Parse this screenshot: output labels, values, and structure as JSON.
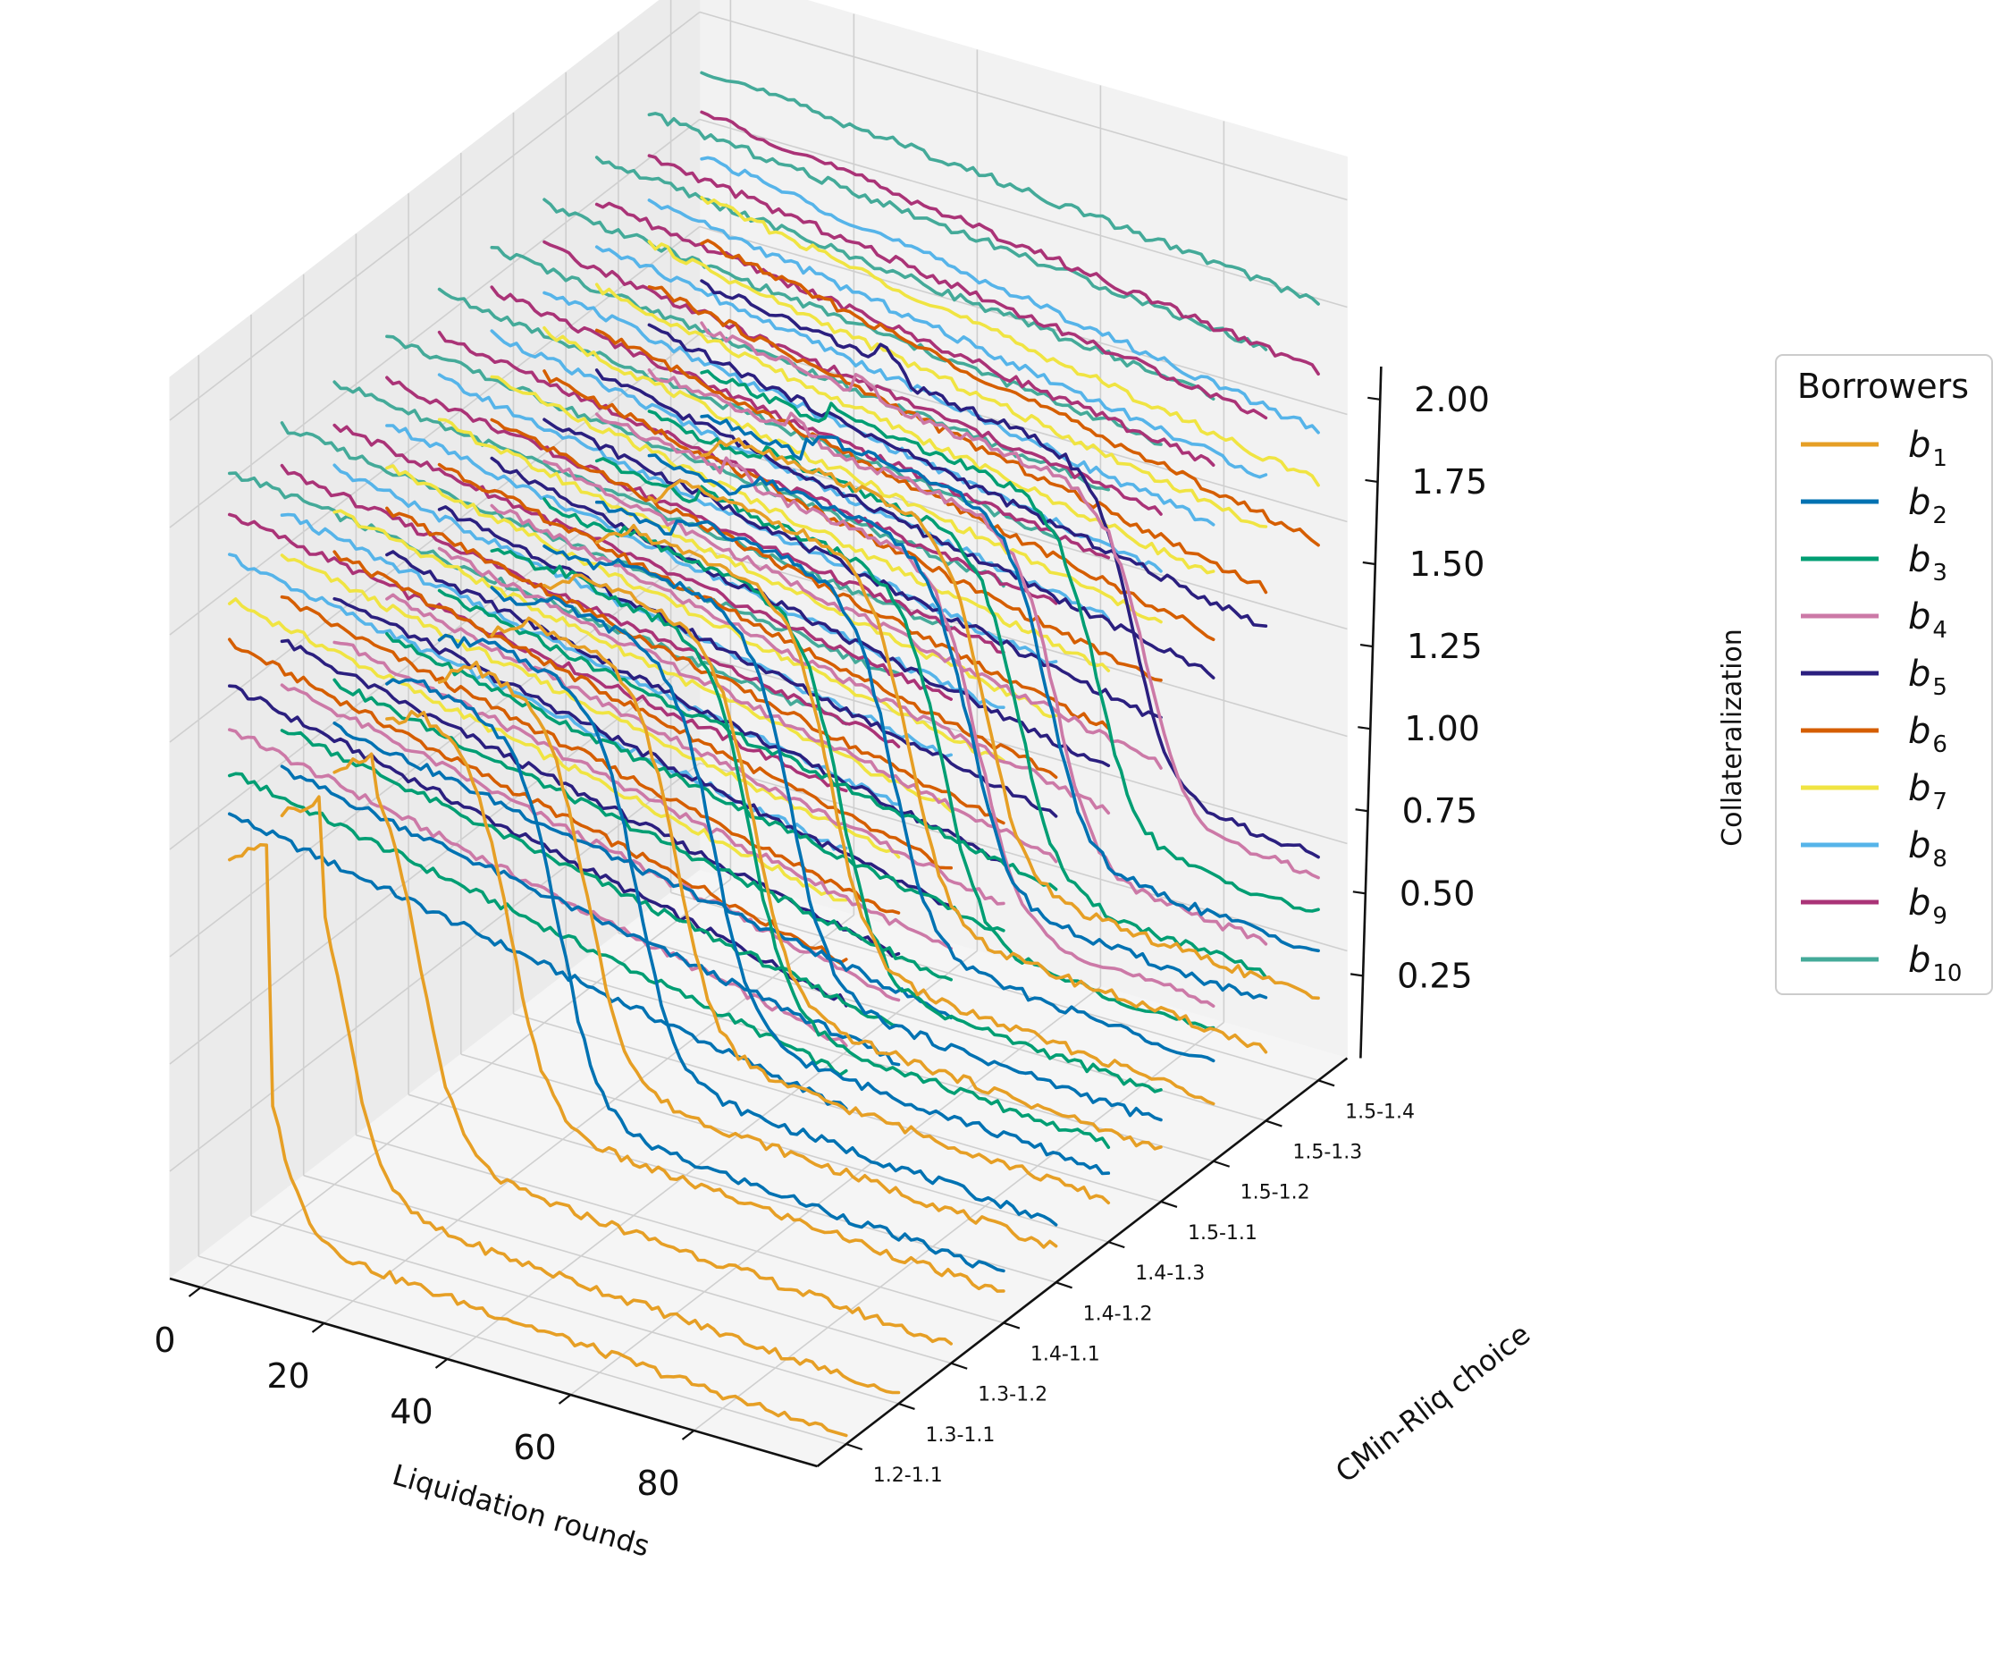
{
  "chart_data": {
    "type": "line",
    "subtype": "3d-waterfall",
    "title": "",
    "xlabel": "Liquidation rounds",
    "ylabel": "CMin-Rliq choice",
    "zlabel": "Collateralization",
    "x_ticks": [
      "0",
      "20",
      "40",
      "60",
      "80"
    ],
    "y_ticks": [
      "1.2-1.1",
      "1.3-1.1",
      "1.3-1.2",
      "1.4-1.1",
      "1.4-1.2",
      "1.4-1.3",
      "1.5-1.1",
      "1.5-1.2",
      "1.5-1.3",
      "1.5-1.4"
    ],
    "z_ticks": [
      "0.25",
      "0.50",
      "0.75",
      "1.00",
      "1.25",
      "1.50",
      "1.75",
      "2.00"
    ],
    "xlim": [
      -5,
      100
    ],
    "zlim": [
      0.0,
      2.1
    ],
    "grid": true,
    "legend": {
      "title": "Borrowers",
      "position": "right",
      "entries": [
        {
          "base": "b",
          "sub": "1",
          "color": "#E69F25"
        },
        {
          "base": "b",
          "sub": "2",
          "color": "#0072B2"
        },
        {
          "base": "b",
          "sub": "3",
          "color": "#009E73"
        },
        {
          "base": "b",
          "sub": "4",
          "color": "#CC79A7"
        },
        {
          "base": "b",
          "sub": "5",
          "color": "#2B1F7F"
        },
        {
          "base": "b",
          "sub": "6",
          "color": "#D55E00"
        },
        {
          "base": "b",
          "sub": "7",
          "color": "#F0E442"
        },
        {
          "base": "b",
          "sub": "8",
          "color": "#56B4E9"
        },
        {
          "base": "b",
          "sub": "9",
          "color": "#AA3377"
        },
        {
          "base": "b",
          "sub": "10",
          "color": "#44AA99"
        }
      ]
    },
    "initial_collateralization": [
      0.95,
      1.05,
      1.15,
      1.25,
      1.35,
      1.45,
      1.55,
      1.65,
      1.75,
      1.85
    ],
    "end_collateralization": [
      0.72,
      0.78,
      0.86,
      0.93,
      1.03,
      1.12,
      1.26,
      1.38,
      1.52,
      1.68
    ],
    "liquidated": [
      {
        "choice": "1.2-1.1",
        "borrower": "b1",
        "start": 0,
        "liquidation_round": 5,
        "end_value": 0.1
      },
      {
        "choice": "1.3-1.1",
        "borrower": "b1",
        "start": 0,
        "liquidation_round": 10,
        "end_value": 0.1
      },
      {
        "choice": "1.3-1.2",
        "borrower": "b1",
        "start": 0,
        "liquidation_round": 14,
        "end_value": 0.12
      },
      {
        "choice": "1.4-1.1",
        "borrower": "b1",
        "start": 0,
        "liquidation_round": 20,
        "end_value": 0.14
      },
      {
        "choice": "1.4-1.1",
        "borrower": "b2",
        "start": 0,
        "liquidation_round": 28,
        "end_value": 0.18
      },
      {
        "choice": "1.4-1.2",
        "borrower": "b1",
        "start": 0,
        "liquidation_round": 24,
        "end_value": 0.15
      },
      {
        "choice": "1.4-1.2",
        "borrower": "b2",
        "start": 3,
        "liquidation_round": 32,
        "end_value": 0.2
      },
      {
        "choice": "1.4-1.3",
        "borrower": "b1",
        "start": 0,
        "liquidation_round": 30,
        "end_value": 0.16
      },
      {
        "choice": "1.4-1.3",
        "borrower": "b2",
        "start": 5,
        "liquidation_round": 36,
        "end_value": 0.22
      },
      {
        "choice": "1.4-1.3",
        "borrower": "b3",
        "start": 10,
        "liquidation_round": 42,
        "end_value": 0.28
      },
      {
        "choice": "1.5-1.1",
        "borrower": "b1",
        "start": 0,
        "liquidation_round": 34,
        "end_value": 0.18
      },
      {
        "choice": "1.5-1.1",
        "borrower": "b2",
        "start": 8,
        "liquidation_round": 40,
        "end_value": 0.24
      },
      {
        "choice": "1.5-1.1",
        "borrower": "b3",
        "start": 12,
        "liquidation_round": 48,
        "end_value": 0.3
      },
      {
        "choice": "1.5-1.2",
        "borrower": "b1",
        "start": 0,
        "liquidation_round": 38,
        "end_value": 0.2
      },
      {
        "choice": "1.5-1.2",
        "borrower": "b2",
        "start": 12,
        "liquidation_round": 48,
        "end_value": 0.28
      },
      {
        "choice": "1.5-1.2",
        "borrower": "b3",
        "start": 16,
        "liquidation_round": 56,
        "end_value": 0.34
      },
      {
        "choice": "1.5-1.2",
        "borrower": "b4",
        "start": 20,
        "liquidation_round": 62,
        "end_value": 0.4
      },
      {
        "choice": "1.5-1.3",
        "borrower": "b1",
        "start": 0,
        "liquidation_round": 42,
        "end_value": 0.22
      },
      {
        "choice": "1.5-1.3",
        "borrower": "b2",
        "start": 14,
        "liquidation_round": 52,
        "end_value": 0.32
      },
      {
        "choice": "1.5-1.3",
        "borrower": "b3",
        "start": 18,
        "liquidation_round": 60,
        "end_value": 0.38
      },
      {
        "choice": "1.5-1.3",
        "borrower": "b4",
        "start": 22,
        "liquidation_round": 66,
        "end_value": 0.45
      },
      {
        "choice": "1.5-1.4",
        "borrower": "b1",
        "start": 0,
        "liquidation_round": 46,
        "end_value": 0.24
      },
      {
        "choice": "1.5-1.4",
        "borrower": "b2",
        "start": 16,
        "liquidation_round": 56,
        "end_value": 0.34
      },
      {
        "choice": "1.5-1.4",
        "borrower": "b3",
        "start": 20,
        "liquidation_round": 64,
        "end_value": 0.42
      },
      {
        "choice": "1.5-1.4",
        "borrower": "b4",
        "start": 24,
        "liquidation_round": 72,
        "end_value": 0.5
      },
      {
        "choice": "1.5-1.4",
        "borrower": "b5",
        "start": 28,
        "liquidation_round": 70,
        "end_value": 0.55
      }
    ]
  }
}
